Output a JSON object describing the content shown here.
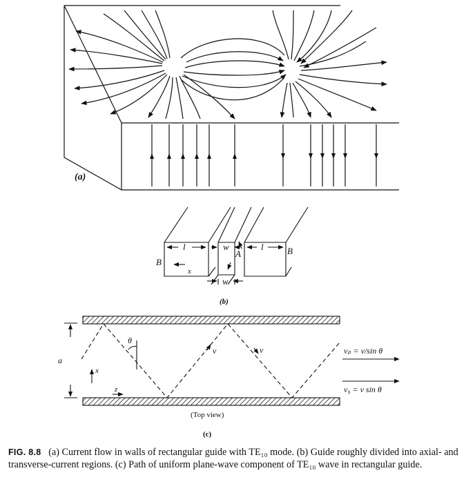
{
  "panel_a": {
    "label": "(a)"
  },
  "panel_b": {
    "label": "(b)",
    "l_left": "l",
    "w_top": "w",
    "A": "A",
    "l_right": "l",
    "B_left": "B",
    "B_right": "B",
    "x": "x",
    "w_bottom": "w"
  },
  "panel_c": {
    "label": "(c)",
    "a": "a",
    "theta": "θ",
    "x": "x",
    "z": "z",
    "v1": "v",
    "v2": "v",
    "vp": "vₚ = v/sin θ",
    "vg": "v₉ = v sin θ",
    "top_view": "(Top view)"
  },
  "caption": {
    "fig": "FIG. 8.8",
    "text": "(a) Current flow in walls of rectangular guide with TE₁₀ mode. (b) Guide roughly divided into axial- and transverse-current regions. (c) Path of uniform plane-wave component of TE₁₀ wave in rectangular guide."
  }
}
